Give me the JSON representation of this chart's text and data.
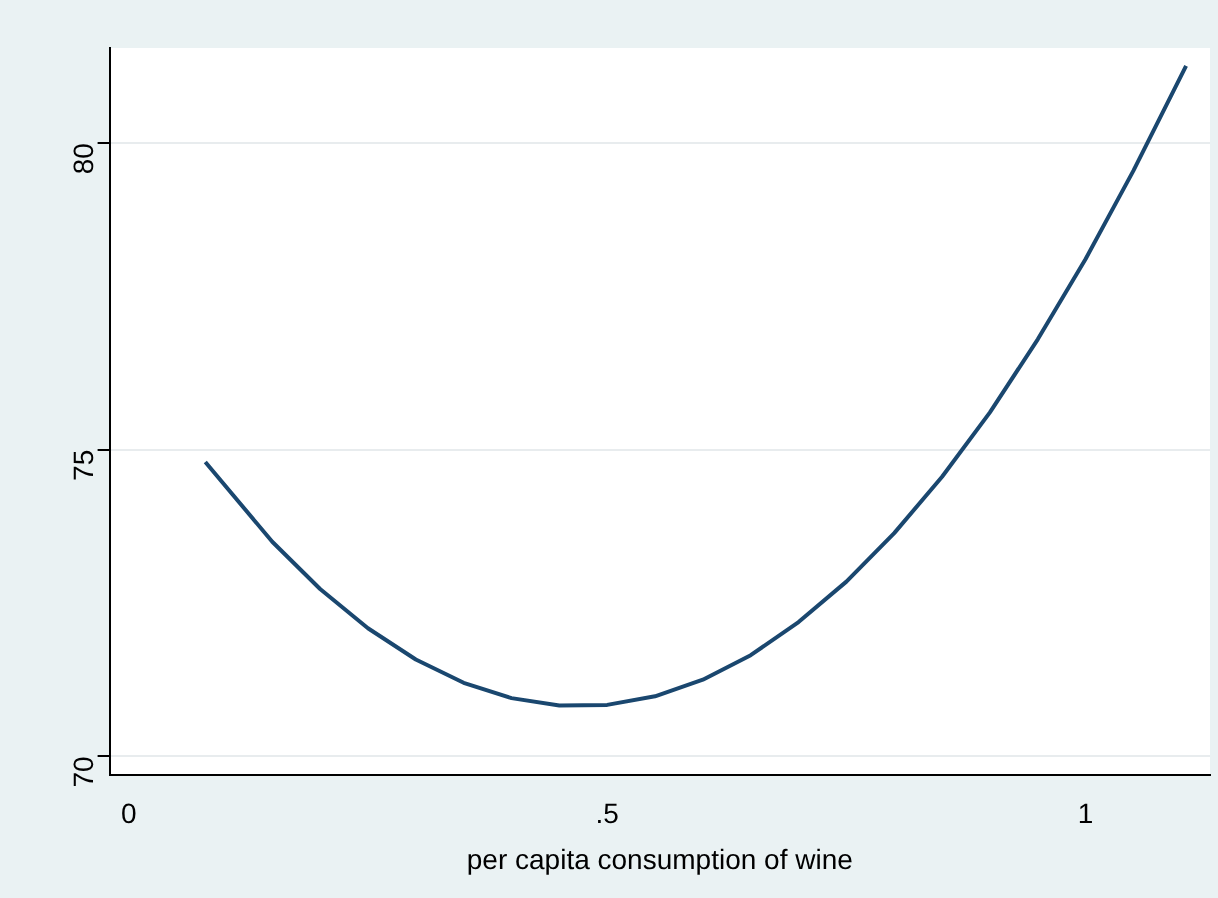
{
  "chart_data": {
    "type": "line",
    "xlabel": "per capita consumption of wine",
    "x": [
      0.08,
      0.15,
      0.2,
      0.25,
      0.3,
      0.35,
      0.4,
      0.45,
      0.5,
      0.55,
      0.6,
      0.65,
      0.7,
      0.75,
      0.8,
      0.85,
      0.9,
      0.95,
      1.0,
      1.05,
      1.105
    ],
    "series": [
      {
        "color": "#1a476f",
        "values": [
          74.8,
          73.5,
          72.73,
          72.09,
          71.58,
          71.2,
          70.95,
          70.83,
          70.84,
          70.98,
          71.25,
          71.65,
          72.19,
          72.85,
          73.64,
          74.56,
          75.61,
          76.8,
          78.11,
          79.55,
          81.26
        ]
      }
    ],
    "xlim": [
      -0.02,
      1.13
    ],
    "xticks": [
      0,
      {
        "value": 0.5,
        "label": ".5"
      },
      1
    ],
    "ylim": [
      69.7,
      81.55
    ],
    "yticks": [
      70,
      75,
      80
    ],
    "grid": "y",
    "legend": false,
    "marker": "none",
    "line_style": "solid"
  }
}
